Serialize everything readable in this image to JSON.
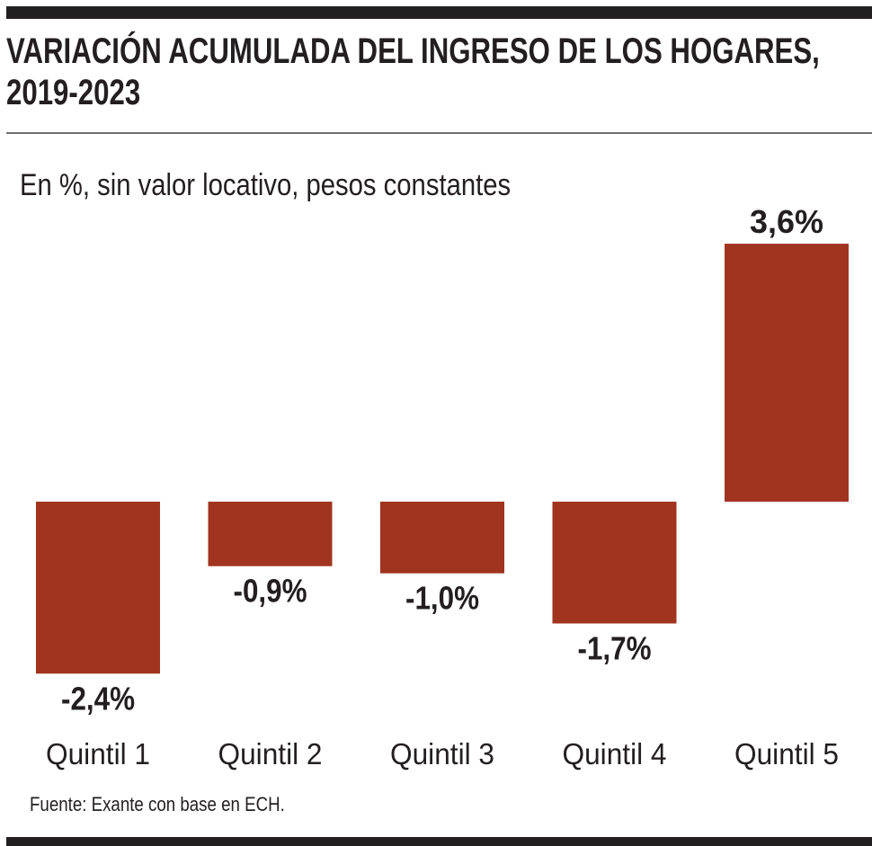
{
  "chart_data": {
    "type": "bar",
    "title": "VARIACIÓN ACUMULADA DEL INGRESO DE LOS HOGARES, 2019-2023",
    "title_lines": [
      "VARIACIÓN ACUMULADA DEL INGRESO DE LOS HOGARES,",
      "2019-2023"
    ],
    "subtitle": "En %, sin valor locativo, pesos constantes",
    "categories": [
      "Quintil 1",
      "Quintil 2",
      "Quintil 3",
      "Quintil 4",
      "Quintil 5"
    ],
    "values": [
      -2.4,
      -0.9,
      -1.0,
      -1.7,
      3.6
    ],
    "value_labels": [
      "-2,4%",
      "-0,9%",
      "-1,0%",
      "-1,7%",
      "3,6%"
    ],
    "xlabel": "",
    "ylabel": "",
    "ylim": [
      -2.4,
      3.6
    ],
    "grid": false,
    "legend": "none",
    "bar_color": "#a0341f",
    "source": "Fuente: Exante con base en ECH."
  }
}
